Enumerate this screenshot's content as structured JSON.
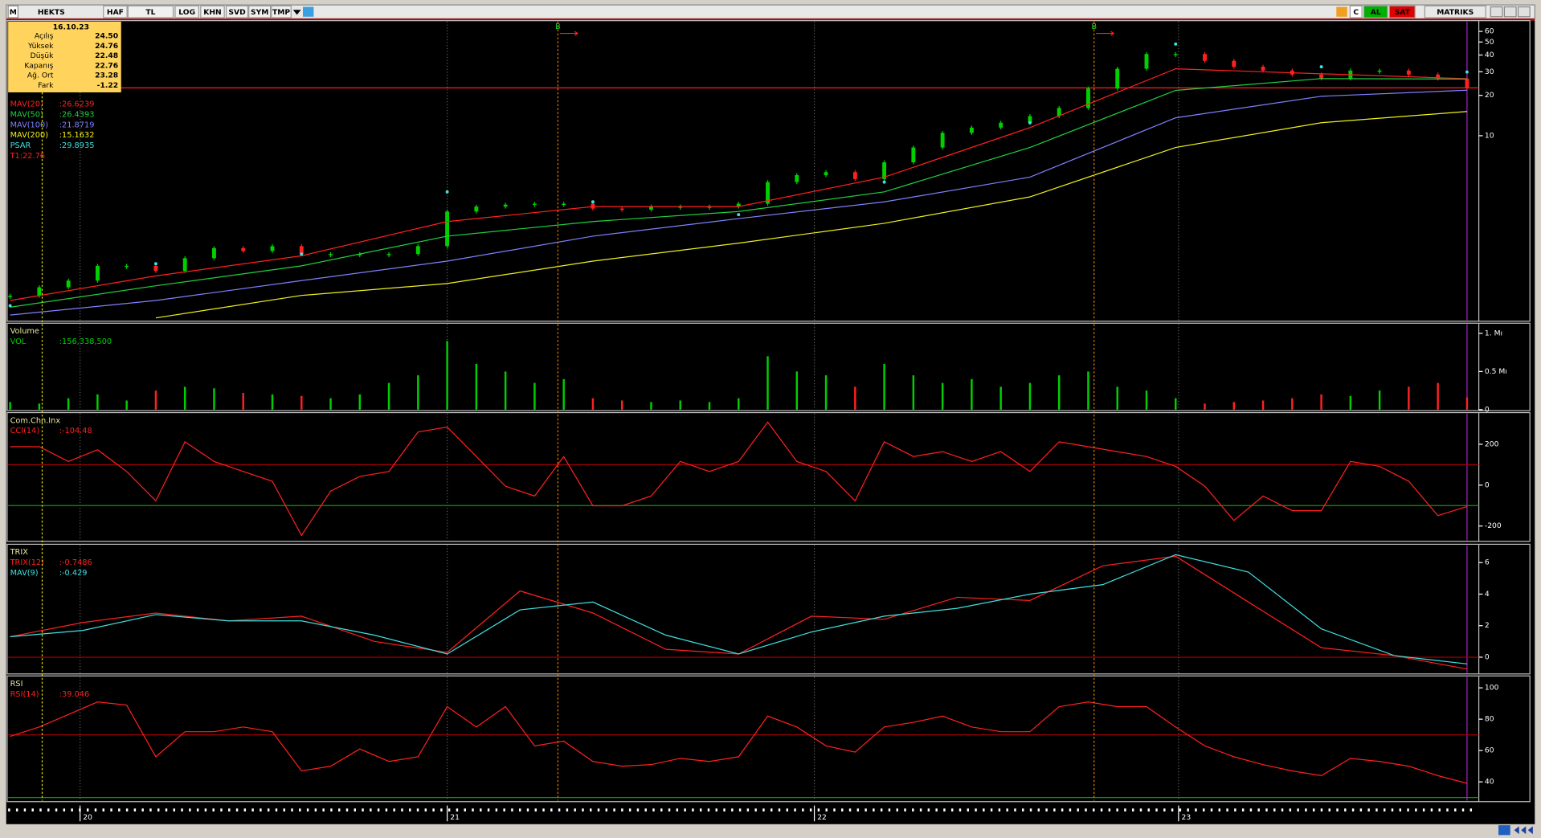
{
  "toolbar": {
    "logo": "M",
    "symbol": "HEKTS",
    "buttons": [
      "HAF",
      "TL",
      "LOG",
      "KHN",
      "SVD",
      "SYM",
      "TMP"
    ],
    "right": [
      "C",
      "AL",
      "SAT",
      "MATRIKS"
    ]
  },
  "info": {
    "date": "16.10.23",
    "rows": [
      [
        "Açılış",
        "24.50"
      ],
      [
        "Yüksek",
        "24.76"
      ],
      [
        "Düşük",
        "22.48"
      ],
      [
        "Kapanış",
        "22.76"
      ],
      [
        "Ağ. Ort",
        "23.28"
      ],
      [
        "Fark",
        "-1.22"
      ]
    ]
  },
  "time_axis": {
    "xlim": [
      0,
      50
    ],
    "xticks": [
      {
        "value": 2.4,
        "label": "20"
      },
      {
        "value": 15,
        "label": "21"
      },
      {
        "value": 27.6,
        "label": "22"
      },
      {
        "value": 40.1,
        "label": "23"
      }
    ]
  },
  "cursor_x": 1.1,
  "signals": [
    {
      "x": 18.8,
      "label": "B"
    },
    {
      "x": 37.2,
      "label": "B"
    }
  ],
  "chart_data": [
    {
      "type": "candlestick",
      "log": true,
      "ylim": [
        0.42,
        71
      ],
      "yticks": [
        10,
        20,
        30,
        40,
        50,
        60
      ],
      "series": [
        {
          "style": "candle",
          "color": "#00d000",
          "down_color": "#ff2020",
          "x": [
            0,
            1,
            2,
            3,
            4,
            5,
            6,
            7,
            8,
            9,
            10,
            11,
            12,
            13,
            14,
            15,
            16,
            17,
            18,
            19,
            20,
            21,
            22,
            23,
            24,
            25,
            26,
            27,
            28,
            29,
            30,
            31,
            32,
            33,
            34,
            35,
            36,
            37,
            38,
            39,
            40,
            41,
            42,
            43,
            44,
            45,
            46,
            47,
            48,
            49,
            50
          ],
          "values": [
            0.64,
            0.74,
            0.83,
            1.07,
            1.07,
            0.98,
            1.22,
            1.45,
            1.38,
            1.5,
            1.31,
            1.31,
            1.31,
            1.31,
            1.5,
            2.72,
            2.96,
            3.06,
            3.11,
            3.11,
            2.86,
            2.81,
            2.96,
            2.96,
            2.96,
            3.11,
            4.51,
            5.08,
            5.35,
            4.75,
            6.33,
            8.17,
            10.5,
            11.5,
            12.5,
            14.0,
            16.1,
            22.5,
            31.6,
            40.7,
            40.7,
            36.2,
            32.7,
            30.6,
            28.6,
            26.7,
            30.6,
            30.6,
            28.6,
            26.7,
            22.76
          ]
        },
        {
          "name": "MAV(20)",
          "readout": ":26.6239",
          "style": "line",
          "color": "#ff2020",
          "x": [
            0,
            5,
            10,
            15,
            20,
            25,
            30,
            35,
            40,
            45,
            50
          ],
          "values": [
            0.59,
            0.9,
            1.27,
            2.29,
            2.96,
            2.96,
            4.91,
            11.5,
            31.6,
            29.0,
            26.6239
          ]
        },
        {
          "name": "MAV(50)",
          "readout": ":26.4393",
          "style": "line",
          "color": "#20d040",
          "x": [
            0,
            5,
            10,
            15,
            20,
            25,
            30,
            35,
            40,
            45,
            50
          ],
          "values": [
            0.526,
            0.76,
            1.07,
            1.78,
            2.29,
            2.72,
            3.81,
            8.17,
            21.8,
            26.7,
            26.4393
          ]
        },
        {
          "name": "MAV(100)",
          "readout": ":21.8719",
          "style": "line",
          "color": "#8080ff",
          "x": [
            0,
            5,
            10,
            15,
            20,
            25,
            30,
            35,
            40,
            45,
            50
          ],
          "values": [
            0.459,
            0.59,
            0.83,
            1.16,
            1.78,
            2.41,
            3.21,
            4.91,
            13.6,
            19.7,
            21.8719
          ]
        },
        {
          "name": "MAV(200)",
          "readout": ":15.1632",
          "style": "line",
          "color": "#f0f020",
          "x": [
            5,
            10,
            15,
            20,
            25,
            30,
            35,
            40,
            45,
            50
          ],
          "values": [
            0.437,
            0.644,
            0.79,
            1.16,
            1.58,
            2.22,
            3.5,
            8.17,
            12.5,
            15.1632
          ]
        },
        {
          "name": "PSAR",
          "readout": ":29.8935",
          "style": "dots",
          "color": "#40e0e0",
          "x": [
            0,
            5,
            10,
            15,
            20,
            25,
            30,
            35,
            40,
            45,
            50
          ],
          "values": [
            0.54,
            1.11,
            1.31,
            3.81,
            3.21,
            2.58,
            4.51,
            12.5,
            48.3,
            32.7,
            29.8935
          ]
        }
      ],
      "hlines": [
        {
          "value": 22.76,
          "label": "T1:22.76",
          "color": "#ff2020"
        }
      ]
    },
    {
      "type": "bar",
      "title": "Volume",
      "ylim": [
        0,
        1.12
      ],
      "yticks": [
        {
          "value": 1,
          "label": "1. Mı"
        },
        {
          "value": 0.5,
          "label": "0.5 Mı"
        },
        0
      ],
      "series": [
        {
          "name": "VOL",
          "readout": ":156,338,500",
          "style": "bar",
          "color": "#00d000",
          "down_color": "#ff2020",
          "x": [
            0,
            1,
            2,
            3,
            4,
            5,
            6,
            7,
            8,
            9,
            10,
            11,
            12,
            13,
            14,
            15,
            16,
            17,
            18,
            19,
            20,
            21,
            22,
            23,
            24,
            25,
            26,
            27,
            28,
            29,
            30,
            31,
            32,
            33,
            34,
            35,
            36,
            37,
            38,
            39,
            40,
            41,
            42,
            43,
            44,
            45,
            46,
            47,
            48,
            49,
            50
          ],
          "values": [
            0.1,
            0.08,
            0.15,
            0.2,
            0.12,
            0.25,
            0.3,
            0.28,
            0.22,
            0.2,
            0.18,
            0.15,
            0.2,
            0.35,
            0.45,
            0.9,
            0.6,
            0.5,
            0.35,
            0.4,
            0.15,
            0.12,
            0.1,
            0.12,
            0.1,
            0.15,
            0.7,
            0.5,
            0.45,
            0.3,
            0.6,
            0.45,
            0.35,
            0.4,
            0.3,
            0.35,
            0.45,
            0.5,
            0.3,
            0.25,
            0.15,
            0.08,
            0.1,
            0.12,
            0.15,
            0.2,
            0.18,
            0.25,
            0.3,
            0.35,
            0.16
          ]
        }
      ]
    },
    {
      "type": "line",
      "title": "Com.Chn.Inx",
      "ylim": [
        -270,
        350
      ],
      "yticks": [
        200,
        0,
        -200
      ],
      "hlines": [
        {
          "value": 100,
          "color": "#a00000"
        },
        {
          "value": -100,
          "color": "#00a000"
        }
      ],
      "series": [
        {
          "name": "CCI(14)",
          "readout": ":-104.48",
          "style": "line",
          "color": "#ff2020",
          "x": [
            0,
            1,
            2,
            3,
            4,
            5,
            6,
            7,
            8,
            9,
            10,
            11,
            12,
            13,
            14,
            15,
            16,
            17,
            18,
            19,
            20,
            21,
            22,
            23,
            24,
            25,
            26,
            27,
            28,
            29,
            30,
            31,
            32,
            33,
            34,
            35,
            36,
            37,
            38,
            39,
            40,
            41,
            42,
            43,
            44,
            45,
            46,
            47,
            48,
            49,
            50
          ],
          "values": [
            188,
            188,
            116,
            173,
            67,
            -77,
            212,
            116,
            67,
            19,
            -246,
            -29,
            43,
            67,
            260,
            284,
            140,
            -5,
            -53,
            140,
            -101,
            -101,
            -53,
            116,
            67,
            116,
            308,
            116,
            67,
            -77,
            212,
            140,
            164,
            116,
            164,
            67,
            212,
            188,
            164,
            140,
            92,
            -5,
            -173,
            -53,
            -125,
            -125,
            116,
            92,
            19,
            -149,
            -104.48
          ]
        }
      ]
    },
    {
      "type": "line",
      "title": "TRIX",
      "ylim": [
        -1,
        7.1
      ],
      "yticks": [
        6,
        4,
        2,
        0
      ],
      "hlines": [
        {
          "value": 0,
          "color": "#a00000"
        }
      ],
      "series": [
        {
          "name": "TRIX(12)",
          "readout": ":-0.7486",
          "style": "line",
          "color": "#ff2020",
          "x": [
            0,
            2.5,
            5,
            7.5,
            10,
            12.5,
            15,
            17.5,
            20,
            22.5,
            25,
            27.5,
            30,
            32.5,
            35,
            37.5,
            40,
            42.5,
            45,
            47.5,
            50
          ],
          "values": [
            1.3,
            2.2,
            2.8,
            2.3,
            2.6,
            1.0,
            0.3,
            4.2,
            2.8,
            0.5,
            0.2,
            2.6,
            2.4,
            3.8,
            3.6,
            5.8,
            6.4,
            3.5,
            0.6,
            0.1,
            -0.7486
          ]
        },
        {
          "name": "MAV(9)",
          "readout": ":-0.429",
          "style": "line",
          "color": "#40e0e0",
          "x": [
            0,
            2.5,
            5,
            7.5,
            10,
            12.5,
            15,
            17.5,
            20,
            22.5,
            25,
            27.5,
            30,
            32.5,
            35,
            37.5,
            40,
            42.5,
            45,
            47.5,
            50
          ],
          "values": [
            1.3,
            1.7,
            2.7,
            2.3,
            2.3,
            1.4,
            0.2,
            3.0,
            3.5,
            1.4,
            0.2,
            1.6,
            2.6,
            3.1,
            4.0,
            4.6,
            6.5,
            5.4,
            1.8,
            0.1,
            -0.429
          ]
        }
      ]
    },
    {
      "type": "line",
      "title": "RSI",
      "ylim": [
        28,
        107
      ],
      "yticks": [
        100,
        80,
        60,
        40
      ],
      "hlines": [
        {
          "value": 70,
          "color": "#a00000"
        },
        {
          "value": 30,
          "color": "#00a000"
        }
      ],
      "series": [
        {
          "name": "RSI(14)",
          "readout": ":39.046",
          "style": "line",
          "color": "#ff2020",
          "x": [
            0,
            1,
            2,
            3,
            4,
            5,
            6,
            7,
            8,
            9,
            10,
            11,
            12,
            13,
            14,
            15,
            16,
            17,
            18,
            19,
            20,
            21,
            22,
            23,
            24,
            25,
            26,
            27,
            28,
            29,
            30,
            31,
            32,
            33,
            34,
            35,
            36,
            37,
            38,
            39,
            40,
            41,
            42,
            43,
            44,
            45,
            46,
            47,
            48,
            49,
            50
          ],
          "values": [
            69,
            75,
            83,
            91,
            89,
            56,
            72,
            72,
            75,
            72,
            47,
            50,
            61,
            53,
            56,
            88,
            75,
            88,
            63,
            66,
            53,
            50,
            51,
            55,
            53,
            56,
            82,
            75,
            63,
            59,
            75,
            78,
            82,
            75,
            72,
            72,
            88,
            91,
            88,
            88,
            75,
            63,
            56,
            51,
            47,
            44,
            55,
            53,
            50,
            44,
            39.046
          ]
        }
      ]
    }
  ]
}
